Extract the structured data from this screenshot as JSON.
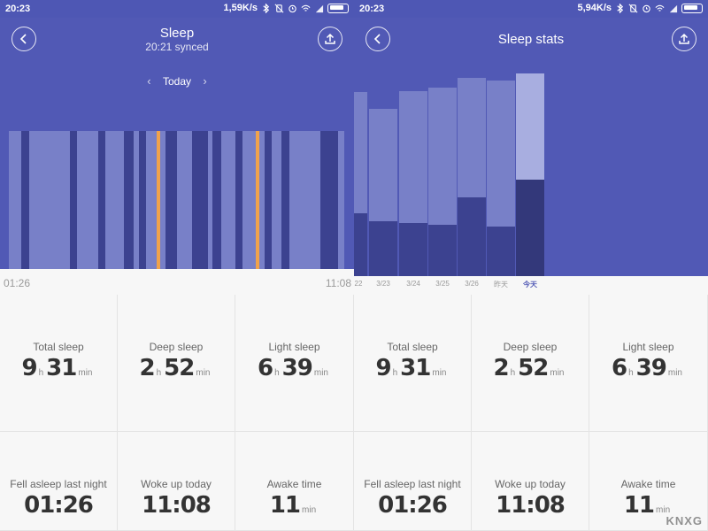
{
  "left_screen": {
    "status": {
      "time": "20:23",
      "net_speed": "1,59K/s"
    },
    "header": {
      "title": "Sleep",
      "subtitle": "20:21 synced"
    },
    "date_nav": {
      "label": "Today"
    },
    "timeline": {
      "start": "01:26",
      "end": "11:08"
    },
    "colors": {
      "header": "#5159b5",
      "light": "#7780c8",
      "deep": "#3c4290",
      "awake": "#f0a24c"
    },
    "stats": [
      {
        "label": "Total sleep",
        "h": "9",
        "h_unit": "h",
        "m": "31",
        "m_unit": "min"
      },
      {
        "label": "Deep sleep",
        "h": "2",
        "h_unit": "h",
        "m": "52",
        "m_unit": "min"
      },
      {
        "label": "Light sleep",
        "h": "6",
        "h_unit": "h",
        "m": "39",
        "m_unit": "min"
      },
      {
        "label": "Fell asleep last night",
        "value": "01:26"
      },
      {
        "label": "Woke up today",
        "value": "11:08"
      },
      {
        "label": "Awake time",
        "value": "11",
        "unit": "min"
      }
    ]
  },
  "right_screen": {
    "status": {
      "time": "20:23",
      "net_speed": "5,94K/s"
    },
    "header": {
      "title": "Sleep stats"
    },
    "axis_labels": [
      "22",
      "3/23",
      "3/24",
      "3/25",
      "3/26",
      "昨天",
      "今天"
    ],
    "stats": [
      {
        "label": "Total sleep",
        "h": "9",
        "h_unit": "h",
        "m": "31",
        "m_unit": "min"
      },
      {
        "label": "Deep sleep",
        "h": "2",
        "h_unit": "h",
        "m": "52",
        "m_unit": "min"
      },
      {
        "label": "Light sleep",
        "h": "6",
        "h_unit": "h",
        "m": "39",
        "m_unit": "min"
      },
      {
        "label": "Fell asleep last night",
        "value": "01:26"
      },
      {
        "label": "Woke up today",
        "value": "11:08"
      },
      {
        "label": "Awake time",
        "value": "11",
        "unit": "min"
      }
    ],
    "watermark": "KNXG"
  }
}
